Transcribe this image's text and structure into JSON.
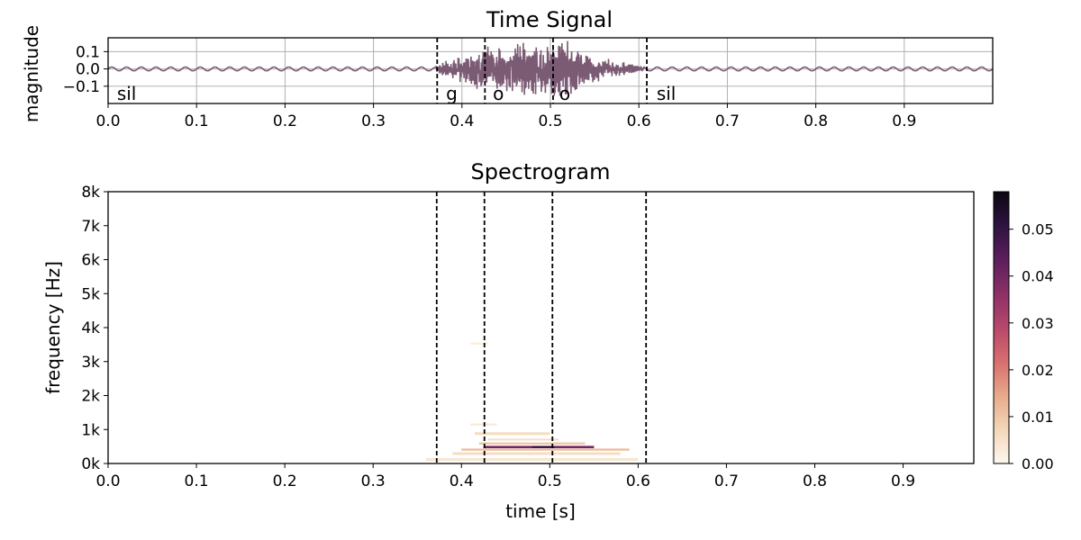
{
  "chart_data": [
    {
      "type": "line",
      "title": "Time Signal",
      "xlabel": "",
      "ylabel": "magnitude",
      "xlim": [
        0.0,
        1.0
      ],
      "ylim": [
        -0.2,
        0.18
      ],
      "x_ticks": [
        "0.0",
        "0.1",
        "0.2",
        "0.3",
        "0.4",
        "0.5",
        "0.6",
        "0.7",
        "0.8",
        "0.9"
      ],
      "y_ticks": [
        "0.1",
        "0.0",
        "−0.1"
      ],
      "grid": true,
      "color": "#7b5a74",
      "series": [
        {
          "envelope": {
            "x": [
              0.0,
              0.37,
              0.375,
              0.39,
              0.41,
              0.425,
              0.45,
              0.47,
              0.49,
              0.5,
              0.52,
              0.54,
              0.56,
              0.58,
              0.6,
              0.61,
              1.0
            ],
            "amp": [
              0.012,
              0.012,
              0.03,
              0.06,
              0.09,
              0.13,
              0.12,
              0.15,
              0.14,
              0.16,
              0.15,
              0.1,
              0.06,
              0.04,
              0.02,
              0.012,
              0.012
            ]
          }
        }
      ],
      "segment_boundaries": [
        0.372,
        0.426,
        0.503,
        0.609
      ],
      "segments": [
        {
          "label": "sil",
          "x": 0.01
        },
        {
          "label": "g",
          "x": 0.382
        },
        {
          "label": "o",
          "x": 0.435
        },
        {
          "label": "o",
          "x": 0.51
        },
        {
          "label": "sil",
          "x": 0.62
        }
      ]
    },
    {
      "type": "heatmap",
      "title": "Spectrogram",
      "xlabel": "time [s]",
      "ylabel": "frequency [Hz]",
      "xlim": [
        0.0,
        0.98
      ],
      "ylim": [
        0,
        8000
      ],
      "x_ticks": [
        "0.0",
        "0.1",
        "0.2",
        "0.3",
        "0.4",
        "0.5",
        "0.6",
        "0.7",
        "0.8",
        "0.9"
      ],
      "y_ticks": [
        "0k",
        "1k",
        "2k",
        "3k",
        "4k",
        "5k",
        "6k",
        "7k",
        "8k"
      ],
      "segment_boundaries": [
        0.372,
        0.426,
        0.503,
        0.609
      ],
      "colormap": "magma_r",
      "colorbar": {
        "range": [
          0.0,
          0.058
        ],
        "ticks": [
          "0.00",
          "0.01",
          "0.02",
          "0.03",
          "0.04",
          "0.05"
        ],
        "colors": [
          "#fcf8ef",
          "#f3d7b8",
          "#e8a98b",
          "#d76e6f",
          "#b8476a",
          "#8c3066",
          "#5b1f5c",
          "#2e1340",
          "#0b0610"
        ]
      },
      "energy_bands": [
        {
          "t0": 0.36,
          "t1": 0.6,
          "f0": 80,
          "f1": 160,
          "value": 0.004
        },
        {
          "t0": 0.39,
          "t1": 0.58,
          "f0": 250,
          "f1": 330,
          "value": 0.006
        },
        {
          "t0": 0.4,
          "t1": 0.59,
          "f0": 380,
          "f1": 440,
          "value": 0.012
        },
        {
          "t0": 0.425,
          "t1": 0.55,
          "f0": 450,
          "f1": 520,
          "value": 0.04
        },
        {
          "t0": 0.48,
          "t1": 0.505,
          "f0": 470,
          "f1": 510,
          "value": 0.05
        },
        {
          "t0": 0.42,
          "t1": 0.54,
          "f0": 560,
          "f1": 620,
          "value": 0.01
        },
        {
          "t0": 0.43,
          "t1": 0.51,
          "f0": 680,
          "f1": 730,
          "value": 0.006
        },
        {
          "t0": 0.415,
          "t1": 0.5,
          "f0": 840,
          "f1": 920,
          "value": 0.006
        },
        {
          "t0": 0.41,
          "t1": 0.44,
          "f0": 1120,
          "f1": 1180,
          "value": 0.003
        },
        {
          "t0": 0.41,
          "t1": 0.43,
          "f0": 3500,
          "f1": 3560,
          "value": 0.002
        }
      ]
    }
  ]
}
